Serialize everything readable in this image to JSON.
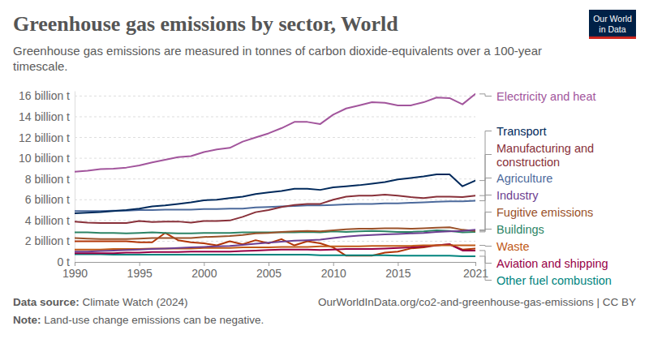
{
  "chart_data": {
    "type": "line",
    "title": "Greenhouse gas emissions by sector, World",
    "subtitle": "Greenhouse gas emissions are measured in tonnes of carbon dioxide-equivalents over a 100-year timescale.",
    "source": "Data source: Climate Watch (2024)",
    "url": "OurWorldInData.org/co2-and-greenhouse-gas-emissions | CC BY",
    "note": "Note: Land-use change emissions can be negative.",
    "logo": "Our World in Data",
    "grid": true,
    "x": [
      1990,
      1991,
      1992,
      1993,
      1994,
      1995,
      1996,
      1997,
      1998,
      1999,
      2000,
      2001,
      2002,
      2003,
      2004,
      2005,
      2006,
      2007,
      2008,
      2009,
      2010,
      2011,
      2012,
      2013,
      2014,
      2015,
      2016,
      2017,
      2018,
      2019,
      2020,
      2021
    ],
    "xlim": [
      1990,
      2021
    ],
    "xticks": [
      1990,
      1995,
      2000,
      2005,
      2010,
      2015,
      2021
    ],
    "ylim": [
      0,
      16500000000.0
    ],
    "yticks": [
      {
        "value": 0,
        "label": "0 t"
      },
      {
        "value": 2000000000.0,
        "label": "2 billion t"
      },
      {
        "value": 4000000000.0,
        "label": "4 billion t"
      },
      {
        "value": 6000000000.0,
        "label": "6 billion t"
      },
      {
        "value": 8000000000.0,
        "label": "8 billion t"
      },
      {
        "value": 10000000000.0,
        "label": "10 billion t"
      },
      {
        "value": 12000000000.0,
        "label": "12 billion t"
      },
      {
        "value": 14000000000.0,
        "label": "14 billion t"
      },
      {
        "value": 16000000000.0,
        "label": "16 billion t"
      }
    ],
    "series": [
      {
        "name": "Electricity and heat",
        "color": "#a2559c",
        "values": [
          8700000000.0,
          8800000000.0,
          8950000000.0,
          9000000000.0,
          9100000000.0,
          9300000000.0,
          9600000000.0,
          9850000000.0,
          10100000000.0,
          10200000000.0,
          10600000000.0,
          10850000000.0,
          11000000000.0,
          11600000000.0,
          12000000000.0,
          12400000000.0,
          12900000000.0,
          13500000000.0,
          13500000000.0,
          13300000000.0,
          14200000000.0,
          14800000000.0,
          15100000000.0,
          15400000000.0,
          15350000000.0,
          15100000000.0,
          15100000000.0,
          15400000000.0,
          15850000000.0,
          15800000000.0,
          15200000000.0,
          16200000000.0
        ]
      },
      {
        "name": "Transport",
        "color": "#00295b",
        "values": [
          4700000000.0,
          4750000000.0,
          4800000000.0,
          4900000000.0,
          5000000000.0,
          5150000000.0,
          5350000000.0,
          5450000000.0,
          5600000000.0,
          5750000000.0,
          5950000000.0,
          6000000000.0,
          6150000000.0,
          6300000000.0,
          6550000000.0,
          6700000000.0,
          6850000000.0,
          7050000000.0,
          7050000000.0,
          6950000000.0,
          7200000000.0,
          7300000000.0,
          7400000000.0,
          7550000000.0,
          7700000000.0,
          7950000000.0,
          8100000000.0,
          8250000000.0,
          8450000000.0,
          8450000000.0,
          7300000000.0,
          7850000000.0
        ]
      },
      {
        "name": "Manufacturing and construction",
        "color": "#883039",
        "values": [
          3900000000.0,
          3800000000.0,
          3750000000.0,
          3750000000.0,
          3750000000.0,
          3950000000.0,
          3850000000.0,
          3900000000.0,
          3900000000.0,
          3800000000.0,
          3950000000.0,
          3950000000.0,
          4000000000.0,
          4350000000.0,
          4800000000.0,
          5000000000.0,
          5300000000.0,
          5500000000.0,
          5600000000.0,
          5600000000.0,
          6000000000.0,
          6300000000.0,
          6400000000.0,
          6400000000.0,
          6500000000.0,
          6400000000.0,
          6250000000.0,
          6150000000.0,
          6300000000.0,
          6300000000.0,
          6250000000.0,
          6400000000.0
        ]
      },
      {
        "name": "Agriculture",
        "color": "#4c6a9c",
        "values": [
          4900000000.0,
          4900000000.0,
          4900000000.0,
          4950000000.0,
          4950000000.0,
          5000000000.0,
          5000000000.0,
          5050000000.0,
          5050000000.0,
          5050000000.0,
          5100000000.0,
          5100000000.0,
          5150000000.0,
          5150000000.0,
          5250000000.0,
          5300000000.0,
          5350000000.0,
          5400000000.0,
          5450000000.0,
          5450000000.0,
          5500000000.0,
          5550000000.0,
          5600000000.0,
          5600000000.0,
          5650000000.0,
          5650000000.0,
          5700000000.0,
          5750000000.0,
          5800000000.0,
          5850000000.0,
          5850000000.0,
          5900000000.0
        ]
      },
      {
        "name": "Industry",
        "color": "#6d3e91",
        "values": [
          1000000000.0,
          1000000000.0,
          1050000000.0,
          1100000000.0,
          1150000000.0,
          1200000000.0,
          1250000000.0,
          1300000000.0,
          1350000000.0,
          1400000000.0,
          1450000000.0,
          1500000000.0,
          1550000000.0,
          1650000000.0,
          1750000000.0,
          1850000000.0,
          1950000000.0,
          2050000000.0,
          2100000000.0,
          2150000000.0,
          2300000000.0,
          2450000000.0,
          2550000000.0,
          2600000000.0,
          2650000000.0,
          2700000000.0,
          2750000000.0,
          2800000000.0,
          2900000000.0,
          2950000000.0,
          3000000000.0,
          3100000000.0
        ]
      },
      {
        "name": "Fugitive emissions",
        "color": "#9a5129",
        "values": [
          2300000000.0,
          2250000000.0,
          2200000000.0,
          2200000000.0,
          2200000000.0,
          2250000000.0,
          2300000000.0,
          2300000000.0,
          2300000000.0,
          2300000000.0,
          2400000000.0,
          2450000000.0,
          2500000000.0,
          2600000000.0,
          2750000000.0,
          2800000000.0,
          2900000000.0,
          2950000000.0,
          3000000000.0,
          2950000000.0,
          3050000000.0,
          3150000000.0,
          3200000000.0,
          3200000000.0,
          3250000000.0,
          3250000000.0,
          3200000000.0,
          3250000000.0,
          3300000000.0,
          3350000000.0,
          3100000000.0,
          3000000000.0
        ]
      },
      {
        "name": "Buildings",
        "color": "#2c8465",
        "values": [
          2850000000.0,
          2850000000.0,
          2800000000.0,
          2800000000.0,
          2750000000.0,
          2800000000.0,
          2850000000.0,
          2800000000.0,
          2750000000.0,
          2750000000.0,
          2800000000.0,
          2800000000.0,
          2800000000.0,
          2850000000.0,
          2850000000.0,
          2850000000.0,
          2850000000.0,
          2850000000.0,
          2900000000.0,
          2850000000.0,
          2950000000.0,
          2900000000.0,
          2950000000.0,
          3000000000.0,
          2950000000.0,
          2900000000.0,
          2900000000.0,
          2950000000.0,
          3050000000.0,
          3000000000.0,
          2850000000.0,
          2900000000.0
        ]
      },
      {
        "name": "Waste",
        "color": "#c05917",
        "values": [
          1200000000.0,
          1200000000.0,
          1200000000.0,
          1250000000.0,
          1250000000.0,
          1250000000.0,
          1300000000.0,
          1300000000.0,
          1300000000.0,
          1300000000.0,
          1350000000.0,
          1350000000.0,
          1350000000.0,
          1400000000.0,
          1400000000.0,
          1400000000.0,
          1450000000.0,
          1450000000.0,
          1450000000.0,
          1500000000.0,
          1500000000.0,
          1500000000.0,
          1500000000.0,
          1550000000.0,
          1550000000.0,
          1550000000.0,
          1550000000.0,
          1600000000.0,
          1600000000.0,
          1600000000.0,
          1600000000.0,
          1600000000.0
        ]
      },
      {
        "name": "Aviation and shipping",
        "color": "#970046",
        "values": [
          850000000.0,
          850000000.0,
          850000000.0,
          850000000.0,
          900000000.0,
          900000000.0,
          950000000.0,
          950000000.0,
          950000000.0,
          1000000000.0,
          1000000000.0,
          1000000000.0,
          1000000000.0,
          1050000000.0,
          1100000000.0,
          1150000000.0,
          1200000000.0,
          1200000000.0,
          1200000000.0,
          1150000000.0,
          1200000000.0,
          1250000000.0,
          1250000000.0,
          1250000000.0,
          1300000000.0,
          1350000000.0,
          1400000000.0,
          1500000000.0,
          1600000000.0,
          1700000000.0,
          1100000000.0,
          1100000000.0
        ]
      },
      {
        "name": "Other fuel combustion",
        "color": "#00847e",
        "values": [
          750000000.0,
          750000000.0,
          750000000.0,
          700000000.0,
          700000000.0,
          700000000.0,
          700000000.0,
          700000000.0,
          700000000.0,
          700000000.0,
          700000000.0,
          700000000.0,
          700000000.0,
          700000000.0,
          700000000.0,
          700000000.0,
          700000000.0,
          700000000.0,
          700000000.0,
          650000000.0,
          650000000.0,
          650000000.0,
          650000000.0,
          650000000.0,
          650000000.0,
          600000000.0,
          600000000.0,
          600000000.0,
          600000000.0,
          600000000.0,
          550000000.0,
          550000000.0
        ]
      },
      {
        "color": "#b13507",
        "values": [
          2000000000.0,
          2000000000.0,
          2000000000.0,
          2000000000.0,
          2000000000.0,
          1900000000.0,
          1900000000.0,
          2800000000.0,
          2100000000.0,
          1900000000.0,
          1800000000.0,
          1600000000.0,
          2000000000.0,
          1700000000.0,
          2100000000.0,
          1800000000.0,
          2200000000.0,
          1600000000.0,
          2000000000.0,
          1800000000.0,
          1400000000.0,
          600000000.0,
          600000000.0,
          600000000.0,
          900000000.0,
          1000000000.0,
          1300000000.0,
          1400000000.0,
          1600000000.0,
          1700000000.0,
          1200000000.0,
          1300000000.0
        ]
      }
    ]
  }
}
